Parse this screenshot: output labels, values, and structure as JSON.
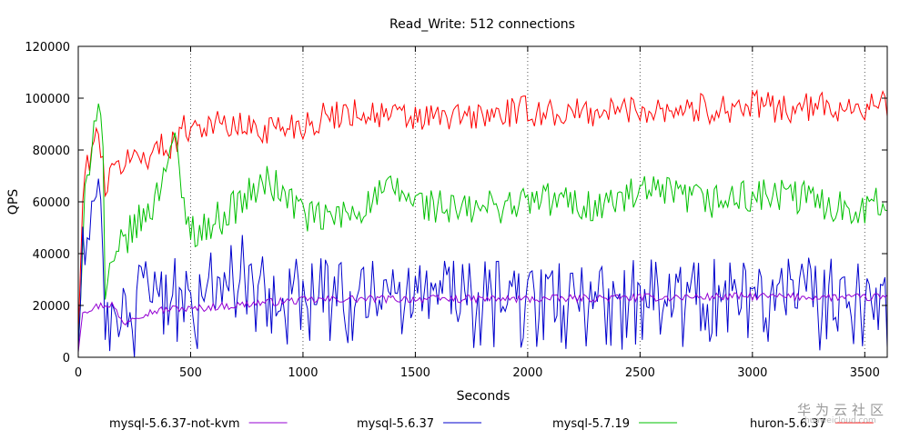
{
  "chart_data": {
    "type": "line",
    "title": "Read_Write: 512 connections",
    "xlabel": "Seconds",
    "ylabel": "QPS",
    "xlim": [
      0,
      3600
    ],
    "ylim": [
      0,
      120000
    ],
    "xticks": [
      0,
      500,
      1000,
      1500,
      2000,
      2500,
      3000,
      3500
    ],
    "yticks": [
      0,
      20000,
      40000,
      60000,
      80000,
      100000,
      120000
    ],
    "grid": "vertical dotted",
    "legend_position": "bottom",
    "series": [
      {
        "name": "mysql-5.6.37-not-kvm",
        "color": "#9400d3",
        "x": [
          0,
          20,
          60,
          100,
          150,
          200,
          250,
          300,
          350,
          400,
          450,
          500,
          600,
          700,
          800,
          900,
          1000,
          1200,
          1500,
          2000,
          2500,
          3000,
          3500,
          3600
        ],
        "y": [
          2000,
          18000,
          19000,
          20000,
          20500,
          13000,
          16000,
          17000,
          18000,
          18500,
          19000,
          18500,
          19500,
          20000,
          21000,
          21500,
          22000,
          22500,
          22500,
          22500,
          23000,
          23500,
          23000,
          23500
        ]
      },
      {
        "name": "mysql-5.6.37",
        "color": "#0000cd",
        "x": [
          0,
          20,
          50,
          100,
          115,
          150,
          200,
          250,
          300,
          350,
          400,
          450,
          500,
          600,
          700,
          750,
          800,
          900,
          1000,
          1200,
          1500,
          2000,
          2500,
          3000,
          3500,
          3600
        ],
        "y": [
          3000,
          40000,
          55000,
          67000,
          10000,
          14000,
          20000,
          23000,
          26000,
          30000,
          33000,
          22000,
          25000,
          30000,
          35000,
          38000,
          30000,
          25000,
          28000,
          27000,
          26000,
          25000,
          27000,
          27000,
          26000,
          27000
        ]
      },
      {
        "name": "mysql-5.7.19",
        "color": "#00c000",
        "x": [
          0,
          30,
          60,
          90,
          110,
          120,
          150,
          200,
          250,
          300,
          350,
          400,
          430,
          460,
          500,
          550,
          650,
          750,
          850,
          950,
          1050,
          1200,
          1400,
          1500,
          1700,
          1900,
          2100,
          2300,
          2500,
          2600,
          2800,
          3000,
          3200,
          3400,
          3600
        ],
        "y": [
          2000,
          60000,
          85000,
          102000,
          80000,
          25000,
          32000,
          45000,
          50000,
          55000,
          62000,
          80000,
          85000,
          60000,
          50000,
          49000,
          55000,
          62000,
          68000,
          60000,
          53000,
          55000,
          65000,
          60000,
          56000,
          59000,
          61000,
          58000,
          63000,
          63000,
          60000,
          62000,
          62000,
          58000,
          59000
        ]
      },
      {
        "name": "huron-5.6.37",
        "color": "#ff0000",
        "x": [
          0,
          20,
          50,
          80,
          110,
          120,
          150,
          200,
          300,
          400,
          500,
          600,
          800,
          1000,
          1200,
          1500,
          1800,
          2000,
          2200,
          2500,
          2800,
          3000,
          3200,
          3400,
          3600
        ],
        "y": [
          8000,
          62000,
          78000,
          85000,
          80000,
          65000,
          70000,
          76000,
          78000,
          82000,
          90000,
          90000,
          88000,
          90000,
          95000,
          92000,
          93000,
          95000,
          94000,
          96000,
          96000,
          97000,
          96000,
          97000,
          97000
        ]
      }
    ]
  },
  "watermark": {
    "text_cn": "华为云社区",
    "url": "huaweicloud.com"
  }
}
